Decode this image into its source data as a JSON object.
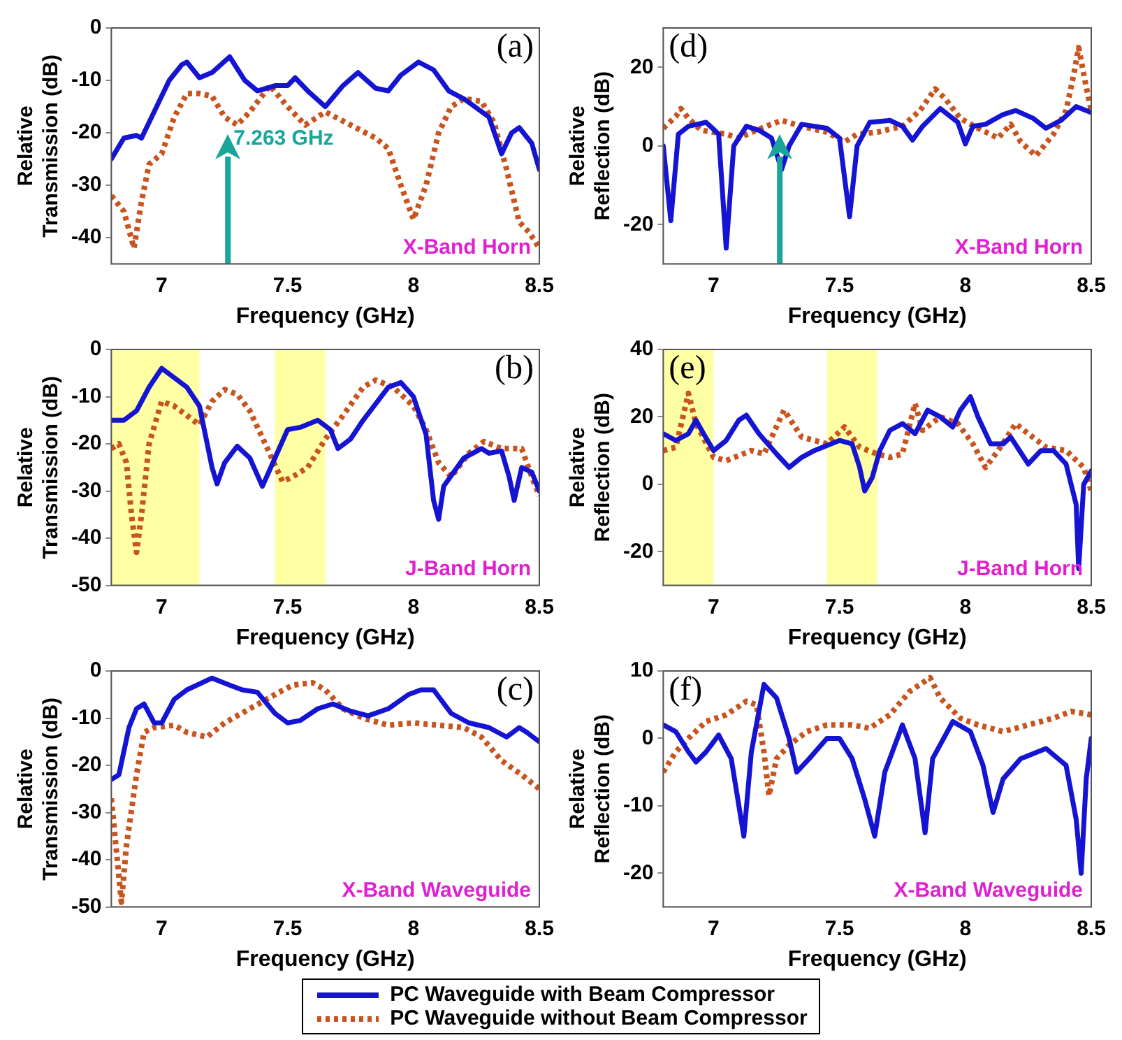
{
  "chart_data": [
    {
      "type": "line",
      "xlabel": "Frequency (GHz)",
      "ylabel": "Relative Transmission (dB)",
      "xlim": [
        6.8,
        8.5
      ],
      "xticks": [
        7,
        7.5,
        8,
        8.5
      ],
      "ylim": [
        -45,
        0
      ],
      "yticks": [
        -40,
        -30,
        -20,
        -10,
        0
      ],
      "grid": false,
      "legend": "bottom",
      "annotations": [
        "(a)",
        "X-Band Horn"
      ],
      "ref_lines": [
        {
          "axis": "x",
          "value": 7.263,
          "label": "7.263 GHz",
          "color": "#1aa59b"
        }
      ],
      "series": [
        {
          "name": "PC Waveguide with Beam Compressor",
          "color": "#1414d2",
          "line_style": "solid",
          "x": [
            6.8,
            6.85,
            6.9,
            6.92,
            6.97,
            7.03,
            7.08,
            7.1,
            7.15,
            7.2,
            7.27,
            7.33,
            7.38,
            7.45,
            7.5,
            7.53,
            7.58,
            7.65,
            7.72,
            7.78,
            7.85,
            7.9,
            7.95,
            8.02,
            8.08,
            8.14,
            8.2,
            8.3,
            8.35,
            8.39,
            8.42,
            8.47,
            8.5
          ],
          "values": [
            -25,
            -21,
            -20.5,
            -21,
            -16,
            -10,
            -7,
            -6.5,
            -9.5,
            -8.5,
            -5.5,
            -10,
            -12,
            -11,
            -11,
            -9.5,
            -12,
            -15,
            -11,
            -8.5,
            -11.5,
            -12,
            -9,
            -6.5,
            -8,
            -12,
            -13.5,
            -17,
            -24,
            -20,
            -19,
            -22,
            -27
          ]
        },
        {
          "name": "PC Waveguide without Beam Compressor",
          "color": "#c8541e",
          "line_style": "dotted",
          "x": [
            6.8,
            6.85,
            6.89,
            6.92,
            6.95,
            7.0,
            7.05,
            7.1,
            7.15,
            7.2,
            7.25,
            7.3,
            7.35,
            7.43,
            7.5,
            7.57,
            7.65,
            7.75,
            7.85,
            7.9,
            7.95,
            8.0,
            8.05,
            8.1,
            8.15,
            8.2,
            8.27,
            8.32,
            8.37,
            8.42,
            8.46,
            8.5
          ],
          "values": [
            -32,
            -35,
            -42,
            -33,
            -26,
            -24,
            -17,
            -12.5,
            -12.5,
            -13,
            -17,
            -18.5,
            -16,
            -11,
            -15,
            -18.5,
            -16,
            -18.5,
            -21,
            -23,
            -30,
            -36.5,
            -30,
            -20,
            -15,
            -13.5,
            -14,
            -18,
            -27,
            -37,
            -39,
            -42
          ]
        }
      ]
    },
    {
      "type": "line",
      "xlabel": "Frequency (GHz)",
      "ylabel": "Relative Reflection (dB)",
      "xlim": [
        6.8,
        8.5
      ],
      "xticks": [
        7,
        7.5,
        8,
        8.5
      ],
      "ylim": [
        -30,
        30
      ],
      "yticks": [
        -20,
        0,
        20
      ],
      "grid": false,
      "annotations": [
        "(d)",
        "X-Band Horn"
      ],
      "ref_lines": [
        {
          "axis": "x",
          "value": 7.263,
          "color": "#1aa59b"
        }
      ],
      "series": [
        {
          "color": "#1414d2",
          "line_style": "solid",
          "x": [
            6.8,
            6.83,
            6.86,
            6.9,
            6.97,
            7.02,
            7.05,
            7.08,
            7.13,
            7.18,
            7.23,
            7.27,
            7.3,
            7.35,
            7.45,
            7.5,
            7.54,
            7.57,
            7.62,
            7.7,
            7.75,
            7.79,
            7.83,
            7.9,
            7.97,
            8.0,
            8.03,
            8.08,
            8.15,
            8.2,
            8.27,
            8.32,
            8.38,
            8.44,
            8.5
          ],
          "values": [
            0,
            -19,
            3,
            5,
            6,
            3,
            -26,
            0,
            5,
            4,
            2,
            -6,
            0,
            5.5,
            4.5,
            2,
            -18,
            0,
            6,
            6.5,
            5,
            1.5,
            5,
            9.5,
            6,
            0.5,
            5,
            5.5,
            8,
            9,
            7,
            4.5,
            6.5,
            10,
            8.5
          ]
        },
        {
          "color": "#c8541e",
          "line_style": "dotted",
          "x": [
            6.8,
            6.85,
            6.87,
            6.9,
            6.95,
            7.0,
            7.05,
            7.1,
            7.17,
            7.27,
            7.35,
            7.45,
            7.52,
            7.57,
            7.65,
            7.75,
            7.82,
            7.88,
            7.92,
            7.98,
            8.05,
            8.13,
            8.18,
            8.22,
            8.28,
            8.35,
            8.4,
            8.43,
            8.45,
            8.48,
            8.5
          ],
          "values": [
            4.5,
            7.5,
            9.5,
            7,
            4,
            3.5,
            3,
            2,
            4,
            6.5,
            5,
            3.5,
            1,
            3,
            3.5,
            5,
            9,
            14.5,
            12,
            7,
            4.5,
            2,
            5.5,
            1,
            -2.5,
            3,
            9,
            18,
            25,
            15,
            9
          ]
        }
      ]
    },
    {
      "type": "line",
      "xlabel": "Frequency (GHz)",
      "ylabel": "Relative Transmission (dB)",
      "xlim": [
        6.8,
        8.5
      ],
      "xticks": [
        7,
        7.5,
        8,
        8.5
      ],
      "ylim": [
        -50,
        0
      ],
      "yticks": [
        -50,
        -40,
        -30,
        -20,
        -10,
        0
      ],
      "grid": false,
      "annotations": [
        "(b)",
        "J-Band Horn"
      ],
      "bands": [
        {
          "axis": "x",
          "from": 6.8,
          "to": 7.15,
          "color": "#ffff66"
        },
        {
          "axis": "x",
          "from": 7.45,
          "to": 7.65,
          "color": "#ffff66"
        }
      ],
      "series": [
        {
          "color": "#1414d2",
          "line_style": "solid",
          "x": [
            6.8,
            6.85,
            6.9,
            6.95,
            7.0,
            7.05,
            7.1,
            7.15,
            7.2,
            7.22,
            7.25,
            7.3,
            7.35,
            7.4,
            7.45,
            7.5,
            7.55,
            7.62,
            7.67,
            7.7,
            7.75,
            7.8,
            7.9,
            7.95,
            8.0,
            8.05,
            8.08,
            8.1,
            8.12,
            8.2,
            8.27,
            8.3,
            8.35,
            8.38,
            8.4,
            8.43,
            8.47,
            8.5
          ],
          "values": [
            -15,
            -15,
            -13,
            -8,
            -4,
            -6,
            -8,
            -12,
            -25,
            -28.5,
            -24,
            -20.5,
            -23,
            -29,
            -23,
            -17,
            -16.5,
            -15,
            -17,
            -21,
            -19,
            -15,
            -8,
            -7,
            -10,
            -18,
            -32,
            -36,
            -29,
            -23,
            -21,
            -22,
            -21.5,
            -27,
            -32,
            -25,
            -26,
            -30
          ]
        },
        {
          "color": "#c8541e",
          "line_style": "dotted",
          "x": [
            6.8,
            6.83,
            6.86,
            6.88,
            6.9,
            6.92,
            6.95,
            7.0,
            7.05,
            7.1,
            7.15,
            7.2,
            7.25,
            7.3,
            7.35,
            7.42,
            7.48,
            7.52,
            7.58,
            7.65,
            7.72,
            7.8,
            7.85,
            7.92,
            8.0,
            8.05,
            8.1,
            8.15,
            8.22,
            8.28,
            8.35,
            8.43,
            8.47,
            8.5
          ],
          "values": [
            -21,
            -20,
            -24,
            -35,
            -43,
            -35,
            -20,
            -11,
            -12,
            -14,
            -16,
            -11,
            -8.5,
            -9.5,
            -13,
            -21,
            -28,
            -27,
            -25,
            -19,
            -14,
            -8,
            -6.5,
            -8,
            -12,
            -17,
            -24,
            -27,
            -22,
            -19.5,
            -21,
            -21,
            -27,
            -31
          ]
        }
      ]
    },
    {
      "type": "line",
      "xlabel": "Frequency (GHz)",
      "ylabel": "Relative Reflection (dB)",
      "xlim": [
        6.8,
        8.5
      ],
      "xticks": [
        7,
        7.5,
        8,
        8.5
      ],
      "ylim": [
        -30,
        40
      ],
      "yticks": [
        -20,
        0,
        20,
        40
      ],
      "grid": false,
      "annotations": [
        "(e)",
        "J-Band Horn"
      ],
      "bands": [
        {
          "axis": "x",
          "from": 6.8,
          "to": 7.0,
          "color": "#ffff66"
        },
        {
          "axis": "x",
          "from": 7.45,
          "to": 7.65,
          "color": "#ffff66"
        }
      ],
      "series": [
        {
          "color": "#1414d2",
          "line_style": "solid",
          "x": [
            6.8,
            6.85,
            6.9,
            6.93,
            6.96,
            7.0,
            7.05,
            7.1,
            7.13,
            7.18,
            7.25,
            7.3,
            7.35,
            7.4,
            7.5,
            7.55,
            7.58,
            7.6,
            7.63,
            7.66,
            7.7,
            7.75,
            7.8,
            7.85,
            7.9,
            7.95,
            7.98,
            8.0,
            8.02,
            8.05,
            8.1,
            8.15,
            8.18,
            8.25,
            8.3,
            8.35,
            8.4,
            8.44,
            8.45,
            8.47,
            8.5
          ],
          "values": [
            15,
            13,
            15,
            19,
            15,
            10,
            13,
            19,
            20.5,
            15,
            9,
            5,
            8,
            10,
            13,
            12,
            5,
            -2,
            2,
            10,
            16,
            18,
            15,
            22,
            20,
            17,
            22,
            24,
            26,
            20,
            12,
            12,
            14,
            6,
            10,
            10,
            6,
            -6,
            -25,
            0,
            4
          ]
        },
        {
          "color": "#c8541e",
          "line_style": "dotted",
          "x": [
            6.8,
            6.85,
            6.9,
            6.93,
            7.0,
            7.05,
            7.15,
            7.2,
            7.28,
            7.35,
            7.45,
            7.52,
            7.58,
            7.65,
            7.7,
            7.75,
            7.8,
            7.83,
            7.9,
            7.97,
            8.03,
            8.08,
            8.13,
            8.2,
            8.25,
            8.32,
            8.4,
            8.47,
            8.5
          ],
          "values": [
            10,
            11,
            27,
            18,
            8,
            7,
            10,
            9,
            22,
            14,
            12,
            17,
            11,
            9,
            8,
            9,
            24,
            16,
            20,
            18,
            12,
            5,
            10,
            18,
            15,
            11,
            10,
            5,
            -2
          ]
        }
      ]
    },
    {
      "type": "line",
      "xlabel": "Frequency (GHz)",
      "ylabel": "Relative Transmission (dB)",
      "xlim": [
        6.8,
        8.5
      ],
      "xticks": [
        7,
        7.5,
        8,
        8.5
      ],
      "ylim": [
        -50,
        0
      ],
      "yticks": [
        -50,
        -40,
        -30,
        -20,
        -10,
        0
      ],
      "grid": false,
      "annotations": [
        "(c)",
        "X-Band Waveguide"
      ],
      "series": [
        {
          "color": "#1414d2",
          "line_style": "solid",
          "x": [
            6.8,
            6.83,
            6.87,
            6.9,
            6.93,
            6.97,
            7.0,
            7.05,
            7.1,
            7.2,
            7.27,
            7.32,
            7.38,
            7.45,
            7.5,
            7.55,
            7.62,
            7.68,
            7.75,
            7.82,
            7.9,
            7.98,
            8.03,
            8.08,
            8.15,
            8.22,
            8.3,
            8.37,
            8.42,
            8.45,
            8.5
          ],
          "values": [
            -23,
            -22,
            -12,
            -8,
            -7,
            -11,
            -11,
            -6,
            -4,
            -1.5,
            -3,
            -4,
            -4.5,
            -9,
            -11,
            -10.5,
            -8,
            -7,
            -8.5,
            -9.5,
            -8,
            -5,
            -4,
            -4,
            -9,
            -11,
            -12,
            -14,
            -12,
            -13,
            -15
          ]
        },
        {
          "color": "#c8541e",
          "line_style": "dotted",
          "x": [
            6.8,
            6.82,
            6.84,
            6.86,
            6.9,
            6.93,
            6.97,
            7.05,
            7.1,
            7.18,
            7.25,
            7.35,
            7.45,
            7.52,
            7.6,
            7.65,
            7.72,
            7.8,
            7.9,
            8.0,
            8.1,
            8.2,
            8.27,
            8.35,
            8.43,
            8.5
          ],
          "values": [
            -27,
            -38,
            -49,
            -37,
            -22,
            -13,
            -12,
            -11.5,
            -13,
            -14,
            -11,
            -8,
            -5,
            -3,
            -2.5,
            -4,
            -8,
            -10,
            -11.5,
            -11,
            -11.5,
            -12,
            -14,
            -19,
            -22,
            -25
          ]
        }
      ]
    },
    {
      "type": "line",
      "xlabel": "Frequency (GHz)",
      "ylabel": "Relative Reflection (dB)",
      "xlim": [
        6.8,
        8.5
      ],
      "xticks": [
        7,
        7.5,
        8,
        8.5
      ],
      "ylim": [
        -25,
        10
      ],
      "yticks": [
        -20,
        -10,
        0,
        10
      ],
      "grid": false,
      "annotations": [
        "(f)",
        "X-Band Waveguide"
      ],
      "series": [
        {
          "color": "#1414d2",
          "line_style": "solid",
          "x": [
            6.8,
            6.85,
            6.9,
            6.93,
            6.97,
            7.02,
            7.07,
            7.12,
            7.15,
            7.2,
            7.25,
            7.3,
            7.33,
            7.38,
            7.45,
            7.5,
            7.55,
            7.6,
            7.64,
            7.68,
            7.75,
            7.8,
            7.84,
            7.87,
            7.95,
            8.02,
            8.07,
            8.11,
            8.15,
            8.22,
            8.32,
            8.4,
            8.44,
            8.46,
            8.48,
            8.5
          ],
          "values": [
            2,
            1,
            -2,
            -3.5,
            -2,
            0.5,
            -3,
            -14.5,
            -2,
            8,
            6,
            0,
            -5,
            -3,
            0,
            0,
            -3,
            -9,
            -14.5,
            -5,
            2,
            -3,
            -14,
            -3,
            2.5,
            1,
            -4,
            -11,
            -6,
            -3,
            -1.5,
            -4,
            -12,
            -20,
            -6,
            0
          ]
        },
        {
          "color": "#c8541e",
          "line_style": "dotted",
          "x": [
            6.8,
            6.85,
            6.9,
            6.97,
            7.05,
            7.13,
            7.17,
            7.2,
            7.22,
            7.25,
            7.3,
            7.37,
            7.45,
            7.55,
            7.62,
            7.7,
            7.78,
            7.86,
            7.9,
            7.98,
            8.05,
            8.15,
            8.25,
            8.35,
            8.42,
            8.5
          ],
          "values": [
            -5,
            -2,
            0,
            2.5,
            3.5,
            5.5,
            5,
            -2,
            -8.5,
            -3,
            -1,
            1,
            2,
            2,
            1.5,
            3.5,
            7,
            9,
            6,
            3,
            2,
            1,
            2,
            3,
            4,
            3.5
          ]
        }
      ]
    }
  ]
}
